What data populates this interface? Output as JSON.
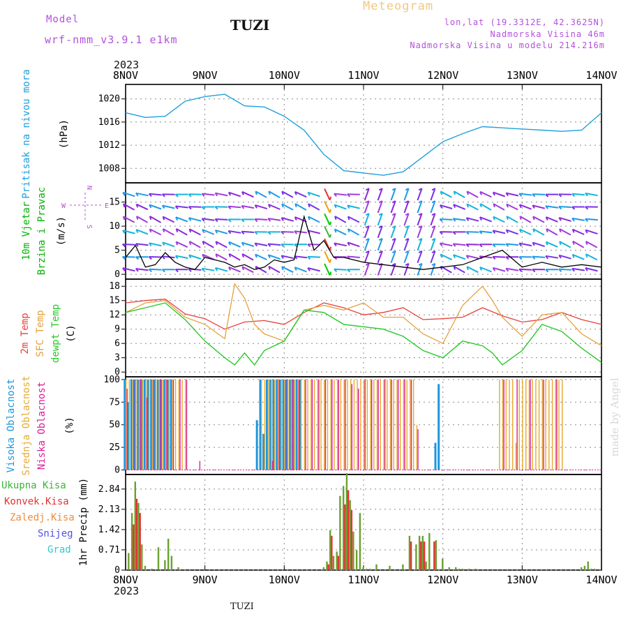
{
  "header": {
    "model_label": "Model",
    "model_name": "wrf-nmm_v3.9.1  e1km",
    "station": "TUZI",
    "title": "Meteogram",
    "lonlat": "lon,lat (19.3312E, 42.3625N)",
    "elev": "Nadmorska Visina 46m",
    "elev_model": "Nadmorska Visina u modelu 214.216m",
    "year": "2023",
    "footer_station": "TUZI",
    "watermark": "made by Angel"
  },
  "colors": {
    "pressure": "#1ea0dc",
    "wind_green": "#00b400",
    "temp": "#e6413c",
    "sfc": "#e6a03c",
    "dew": "#28c828",
    "high": "#1e96dc",
    "mid": "#e6aa32",
    "low": "#dc1e96",
    "total": "#3cb43c",
    "conv": "#e63232",
    "frozen": "#f08c3c",
    "snow": "#5050e6",
    "grad": "#32c8c8",
    "title": "#f0c882",
    "purple": "#b450dc"
  },
  "x_axis": {
    "ticks": [
      "8NOV",
      "9NOV",
      "10NOV",
      "11NOV",
      "12NOV",
      "13NOV",
      "14NOV"
    ],
    "year": "2023"
  },
  "panels": {
    "pressure": {
      "label1": "Pritisak na nivou mora",
      "label2": "(hPa)",
      "ticks": [
        "1008",
        "1012",
        "1016",
        "1020"
      ]
    },
    "wind": {
      "label_green1": "10m Vjetar",
      "label_green2": "Brzina i Pravac",
      "label_unit": "(m/s)",
      "compass_n": "N",
      "compass_s": "S",
      "compass_w": "W",
      "compass_e": "E",
      "ticks": [
        "0",
        "5",
        "10",
        "15"
      ]
    },
    "temp": {
      "label_t2": "2m Temp",
      "label_sfc": "SFC Temp",
      "label_dew": "dewpt Temp",
      "label_unit": "(C)",
      "ticks": [
        "0",
        "3",
        "6",
        "9",
        "12",
        "15",
        "18"
      ]
    },
    "cloud": {
      "label_high": "Visoka Oblacnost",
      "label_mid": "Srednja Oblacnost",
      "label_low": "Niska Oblacnost",
      "label_unit": "(%)",
      "ticks": [
        "0",
        "25",
        "50",
        "75",
        "100"
      ]
    },
    "precip": {
      "legend": [
        "Ukupna Kisa",
        "Konvek.Kisa",
        "Zaledj.Kisa",
        "Snijeg",
        "Grad"
      ],
      "label": "1hr Precip (mm)",
      "ticks": [
        "0",
        "0.71",
        "1.42",
        "2.13",
        "2.84"
      ]
    }
  },
  "chart_data": [
    {
      "type": "line",
      "title": "Pritisak na nivou mora",
      "ylabel": "(hPa)",
      "ylim": [
        1005.5,
        1022.5
      ],
      "x_unit": "hours since 8NOV 00",
      "series": [
        {
          "name": "Pritisak na nivou mora",
          "x": [
            0,
            6,
            12,
            18,
            24,
            30,
            36,
            42,
            48,
            54,
            60,
            66,
            72,
            78,
            84,
            90,
            96,
            102,
            108,
            114,
            120,
            126,
            132,
            138,
            144
          ],
          "y": [
            1017.6,
            1016.8,
            1017.0,
            1019.6,
            1020.4,
            1020.8,
            1018.8,
            1018.6,
            1017.0,
            1014.6,
            1010.4,
            1007.6,
            1007.2,
            1006.8,
            1007.4,
            1010.0,
            1012.6,
            1014.0,
            1015.2,
            1015.0,
            1014.8,
            1014.6,
            1014.4,
            1014.6,
            1017.6
          ]
        }
      ],
      "grid": true
    },
    {
      "type": "line",
      "title": "10m Vjetar Brzina i Pravac",
      "ylabel": "(m/s)",
      "ylim": [
        -1,
        19
      ],
      "x_unit": "hours since 8NOV 00",
      "series": [
        {
          "name": "10m Vjetar Brzina i Pravac",
          "x": [
            0,
            3,
            6,
            9,
            12,
            15,
            18,
            21,
            24,
            27,
            30,
            33,
            36,
            39,
            42,
            45,
            48,
            51,
            54,
            57,
            60,
            63,
            66,
            69,
            72,
            78,
            84,
            90,
            96,
            102,
            108,
            114,
            120,
            126,
            132,
            138,
            144
          ],
          "y": [
            3.5,
            6.0,
            1.5,
            2.0,
            4.5,
            2.5,
            1.5,
            1.0,
            3.5,
            3.0,
            2.5,
            1.5,
            2.0,
            1.0,
            1.5,
            3.0,
            2.5,
            3.0,
            12.0,
            5.0,
            7.0,
            3.5,
            3.5,
            3.0,
            2.5,
            2.0,
            1.5,
            1.0,
            1.5,
            2.0,
            3.5,
            5.0,
            1.5,
            2.5,
            1.5,
            2.0,
            1.5
          ]
        }
      ],
      "grid": true
    },
    {
      "type": "line",
      "title": "Temperature",
      "ylabel": "(C)",
      "ylim": [
        -1,
        19.5
      ],
      "x_unit": "hours since 8NOV 00",
      "series": [
        {
          "name": "2m Temp",
          "x": [
            0,
            6,
            12,
            18,
            24,
            30,
            36,
            42,
            48,
            54,
            60,
            66,
            72,
            78,
            84,
            90,
            96,
            102,
            108,
            114,
            120,
            126,
            132,
            138,
            144
          ],
          "y": [
            14.5,
            15.0,
            15.3,
            12.2,
            11.2,
            9.0,
            10.5,
            10.8,
            10.0,
            12.5,
            14.5,
            13.5,
            12.0,
            12.5,
            13.5,
            11.0,
            11.2,
            11.5,
            13.5,
            11.8,
            10.5,
            11.0,
            12.5,
            11.0,
            10.0
          ]
        },
        {
          "name": "SFC Temp",
          "x": [
            0,
            6,
            12,
            18,
            24,
            30,
            33,
            36,
            39,
            42,
            48,
            54,
            60,
            66,
            72,
            78,
            84,
            90,
            96,
            102,
            108,
            111,
            114,
            120,
            126,
            132,
            138,
            144
          ],
          "y": [
            12.5,
            14.5,
            15.0,
            11.5,
            10.0,
            7.0,
            18.5,
            15.5,
            10.0,
            8.0,
            6.5,
            13.0,
            14.0,
            13.0,
            14.5,
            11.5,
            11.5,
            8.0,
            6.0,
            14.0,
            18.0,
            15.0,
            11.5,
            7.5,
            12.0,
            12.5,
            8.0,
            5.5
          ]
        },
        {
          "name": "dewpt Temp",
          "x": [
            0,
            6,
            12,
            18,
            24,
            30,
            33,
            36,
            39,
            42,
            48,
            54,
            60,
            66,
            72,
            78,
            84,
            90,
            96,
            102,
            108,
            111,
            114,
            120,
            126,
            132,
            138,
            144
          ],
          "y": [
            12.5,
            13.5,
            14.5,
            11.0,
            6.5,
            3.0,
            1.5,
            4.0,
            1.5,
            4.5,
            6.5,
            13.0,
            12.5,
            10.0,
            9.5,
            9.0,
            7.5,
            4.5,
            3.0,
            6.5,
            5.5,
            4.0,
            1.5,
            4.5,
            10.0,
            8.5,
            5.0,
            2.0
          ]
        }
      ],
      "grid": true
    },
    {
      "type": "bar",
      "title": "Oblacnost",
      "ylabel": "(%)",
      "ylim": [
        -5,
        103
      ],
      "x_unit": "hours since 8NOV 00",
      "series": [
        {
          "name": "Visoka Oblacnost",
          "x": [
            0,
            1,
            2,
            3,
            4,
            5,
            6,
            7,
            8,
            9,
            10,
            11,
            12,
            13,
            14,
            40,
            41,
            42,
            43,
            44,
            45,
            46,
            47,
            48,
            49,
            50,
            51,
            52,
            53,
            94,
            95
          ],
          "y": [
            100,
            75,
            100,
            100,
            100,
            100,
            100,
            100,
            100,
            100,
            100,
            100,
            100,
            100,
            100,
            55,
            100,
            40,
            100,
            100,
            100,
            100,
            100,
            100,
            100,
            100,
            100,
            100,
            100,
            30,
            95
          ]
        },
        {
          "name": "Srednja Oblacnost",
          "x": [
            0,
            1,
            2,
            3,
            4,
            5,
            6,
            7,
            8,
            9,
            10,
            11,
            12,
            13,
            14,
            15,
            16,
            17,
            18,
            41,
            42,
            43,
            44,
            45,
            46,
            47,
            48,
            49,
            50,
            51,
            52,
            53,
            54,
            55,
            56,
            57,
            58,
            59,
            60,
            61,
            62,
            63,
            64,
            65,
            66,
            67,
            68,
            69,
            70,
            71,
            72,
            73,
            74,
            75,
            76,
            77,
            78,
            79,
            80,
            81,
            82,
            83,
            84,
            85,
            86,
            87,
            88,
            113,
            114,
            115,
            116,
            117,
            118,
            119,
            120,
            121,
            122,
            123,
            124,
            125,
            126,
            127,
            128,
            129,
            130,
            131,
            132
          ],
          "y": [
            100,
            100,
            100,
            100,
            100,
            100,
            100,
            100,
            100,
            100,
            100,
            100,
            100,
            100,
            100,
            100,
            100,
            100,
            100,
            100,
            100,
            100,
            100,
            100,
            100,
            100,
            100,
            100,
            100,
            100,
            100,
            100,
            100,
            100,
            100,
            100,
            100,
            100,
            100,
            100,
            100,
            100,
            100,
            100,
            100,
            100,
            100,
            100,
            100,
            100,
            100,
            100,
            100,
            100,
            100,
            100,
            100,
            100,
            100,
            100,
            100,
            100,
            100,
            100,
            100,
            100,
            50,
            100,
            100,
            100,
            100,
            100,
            30,
            100,
            100,
            100,
            100,
            100,
            100,
            100,
            100,
            100,
            100,
            100,
            100,
            100,
            100
          ]
        },
        {
          "name": "Niska Oblacnost",
          "x": [
            0,
            2,
            4,
            6,
            8,
            10,
            12,
            14,
            16,
            18,
            22,
            44,
            46,
            48,
            50,
            52,
            54,
            56,
            58,
            60,
            62,
            64,
            66,
            68,
            70,
            72,
            74,
            76,
            78,
            80,
            82,
            84,
            86,
            88,
            114,
            118,
            122,
            126,
            130
          ],
          "y": [
            90,
            100,
            100,
            80,
            100,
            100,
            100,
            100,
            100,
            100,
            10,
            10,
            100,
            100,
            100,
            100,
            100,
            100,
            100,
            100,
            100,
            100,
            100,
            95,
            90,
            100,
            100,
            100,
            100,
            100,
            100,
            100,
            100,
            45,
            100,
            100,
            100,
            100,
            100
          ]
        }
      ],
      "grid": true
    },
    {
      "type": "bar",
      "title": "1hr Precip",
      "ylabel": "1hr Precip (mm)",
      "ylim": [
        0,
        3.35
      ],
      "x_unit": "hours since 8NOV 00",
      "series": [
        {
          "name": "Ukupna Kisa",
          "x": [
            1,
            2,
            3,
            4,
            5,
            6,
            8,
            10,
            12,
            13,
            14,
            16,
            60,
            61,
            62,
            63,
            64,
            65,
            66,
            67,
            68,
            69,
            70,
            71,
            72,
            73,
            74,
            76,
            80,
            84,
            86,
            88,
            89,
            90,
            91,
            92,
            94,
            96,
            98,
            100,
            101,
            102,
            104,
            106,
            138,
            139,
            140,
            141,
            142
          ],
          "y": [
            0.6,
            2.0,
            3.1,
            2.35,
            0.9,
            0.15,
            0.05,
            0.8,
            0.35,
            1.1,
            0.5,
            0.1,
            0.1,
            0.3,
            1.4,
            0.5,
            0.65,
            2.6,
            2.95,
            3.4,
            2.45,
            1.35,
            0.7,
            2.0,
            0.1,
            0.05,
            0.05,
            0.2,
            0.15,
            0.2,
            1.2,
            0.9,
            1.2,
            1.2,
            0.3,
            1.3,
            1.05,
            0.4,
            0.1,
            0.1,
            0.05,
            0.05,
            0.05,
            0.05,
            0.1,
            0.15,
            0.3,
            0.05,
            0.05
          ]
        },
        {
          "name": "Konvek.Kisa",
          "x": [
            2,
            3,
            4,
            61,
            62,
            64,
            66,
            67,
            68,
            86,
            89,
            90,
            93
          ],
          "y": [
            1.6,
            2.5,
            2.0,
            0.2,
            1.2,
            0.5,
            2.3,
            2.8,
            2.1,
            1.0,
            1.0,
            1.0,
            1.0
          ]
        },
        {
          "name": "Zaledj.Kisa",
          "x": [],
          "y": []
        },
        {
          "name": "Snijeg",
          "x": [],
          "y": []
        },
        {
          "name": "Grad",
          "x": [],
          "y": []
        }
      ],
      "grid": true
    }
  ]
}
